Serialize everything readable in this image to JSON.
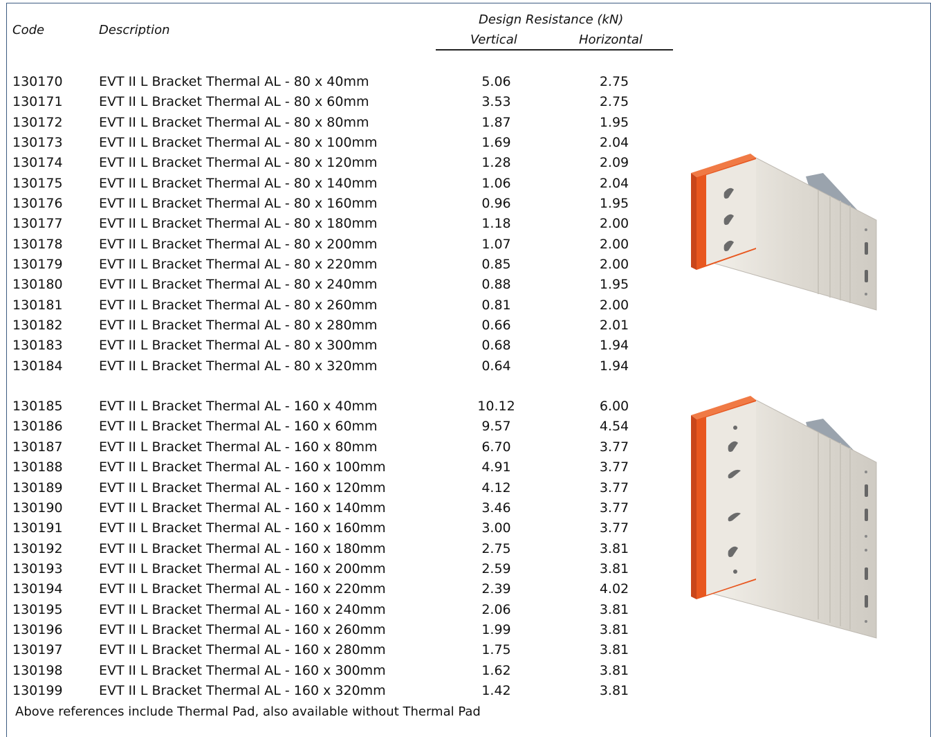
{
  "header": {
    "code": "Code",
    "description": "Description",
    "group": "Design Resistance (kN)",
    "vertical": "Vertical",
    "horizontal": "Horizontal"
  },
  "groups": [
    {
      "rows": [
        {
          "code": "130170",
          "desc": "EVT II L Bracket Thermal AL - 80 x 40mm",
          "v": "5.06",
          "h": "2.75"
        },
        {
          "code": "130171",
          "desc": "EVT II L Bracket Thermal AL - 80 x 60mm",
          "v": "3.53",
          "h": "2.75"
        },
        {
          "code": "130172",
          "desc": "EVT II L Bracket Thermal AL - 80 x 80mm",
          "v": "1.87",
          "h": "1.95"
        },
        {
          "code": "130173",
          "desc": "EVT II L Bracket Thermal AL - 80 x 100mm",
          "v": "1.69",
          "h": "2.04"
        },
        {
          "code": "130174",
          "desc": "EVT II L Bracket Thermal AL - 80 x 120mm",
          "v": "1.28",
          "h": "2.09"
        },
        {
          "code": "130175",
          "desc": "EVT II L Bracket Thermal AL - 80 x 140mm",
          "v": "1.06",
          "h": "2.04"
        },
        {
          "code": "130176",
          "desc": "EVT II L Bracket Thermal AL - 80 x 160mm",
          "v": "0.96",
          "h": "1.95"
        },
        {
          "code": "130177",
          "desc": "EVT II L Bracket Thermal AL - 80 x 180mm",
          "v": "1.18",
          "h": "2.00"
        },
        {
          "code": "130178",
          "desc": "EVT II L Bracket Thermal AL - 80 x 200mm",
          "v": "1.07",
          "h": "2.00"
        },
        {
          "code": "130179",
          "desc": "EVT II L Bracket Thermal AL - 80 x 220mm",
          "v": "0.85",
          "h": "2.00"
        },
        {
          "code": "130180",
          "desc": "EVT II L Bracket Thermal AL - 80 x 240mm",
          "v": "0.88",
          "h": "1.95"
        },
        {
          "code": "130181",
          "desc": "EVT II L Bracket Thermal AL - 80 x 260mm",
          "v": "0.81",
          "h": "2.00"
        },
        {
          "code": "130182",
          "desc": "EVT II L Bracket Thermal AL - 80 x 280mm",
          "v": "0.66",
          "h": "2.01"
        },
        {
          "code": "130183",
          "desc": "EVT II L Bracket Thermal AL - 80 x 300mm",
          "v": "0.68",
          "h": "1.94"
        },
        {
          "code": "130184",
          "desc": "EVT II L Bracket Thermal AL - 80 x 320mm",
          "v": "0.64",
          "h": "1.94"
        }
      ]
    },
    {
      "rows": [
        {
          "code": "130185",
          "desc": "EVT II L Bracket Thermal AL - 160 x 40mm",
          "v": "10.12",
          "h": "6.00"
        },
        {
          "code": "130186",
          "desc": "EVT II L Bracket Thermal AL - 160 x 60mm",
          "v": "9.57",
          "h": "4.54"
        },
        {
          "code": "130187",
          "desc": "EVT II L Bracket Thermal AL - 160 x 80mm",
          "v": "6.70",
          "h": "3.77"
        },
        {
          "code": "130188",
          "desc": "EVT II L Bracket Thermal AL - 160 x 100mm",
          "v": "4.91",
          "h": "3.77"
        },
        {
          "code": "130189",
          "desc": "EVT II L Bracket Thermal AL - 160 x 120mm",
          "v": "4.12",
          "h": "3.77"
        },
        {
          "code": "130190",
          "desc": "EVT II L Bracket Thermal AL - 160 x 140mm",
          "v": "3.46",
          "h": "3.77"
        },
        {
          "code": "130191",
          "desc": "EVT II L Bracket Thermal AL - 160 x 160mm",
          "v": "3.00",
          "h": "3.77"
        },
        {
          "code": "130192",
          "desc": "EVT II L Bracket Thermal AL - 160 x 180mm",
          "v": "2.75",
          "h": "3.81"
        },
        {
          "code": "130193",
          "desc": "EVT II L Bracket Thermal AL - 160 x 200mm",
          "v": "2.59",
          "h": "3.81"
        },
        {
          "code": "130194",
          "desc": "EVT II L Bracket Thermal AL - 160 x 220mm",
          "v": "2.39",
          "h": "4.02"
        },
        {
          "code": "130195",
          "desc": "EVT II L Bracket Thermal AL - 160 x 240mm",
          "v": "2.06",
          "h": "3.81"
        },
        {
          "code": "130196",
          "desc": "EVT II L Bracket Thermal AL - 160 x 260mm",
          "v": "1.99",
          "h": "3.81"
        },
        {
          "code": "130197",
          "desc": "EVT II L Bracket Thermal AL - 160 x 280mm",
          "v": "1.75",
          "h": "3.81"
        },
        {
          "code": "130198",
          "desc": "EVT II L Bracket Thermal AL - 160 x 300mm",
          "v": "1.62",
          "h": "3.81"
        },
        {
          "code": "130199",
          "desc": "EVT II L Bracket Thermal AL - 160 x 320mm",
          "v": "1.42",
          "h": "3.81"
        }
      ]
    }
  ],
  "note": "Above references include Thermal Pad, also available without Thermal Pad",
  "images": {
    "small": "bracket-80-illustration",
    "large": "bracket-160-illustration"
  },
  "colors": {
    "pad": "#e8571f",
    "aluminium": "#dedad2",
    "border": "#3b5a80"
  }
}
